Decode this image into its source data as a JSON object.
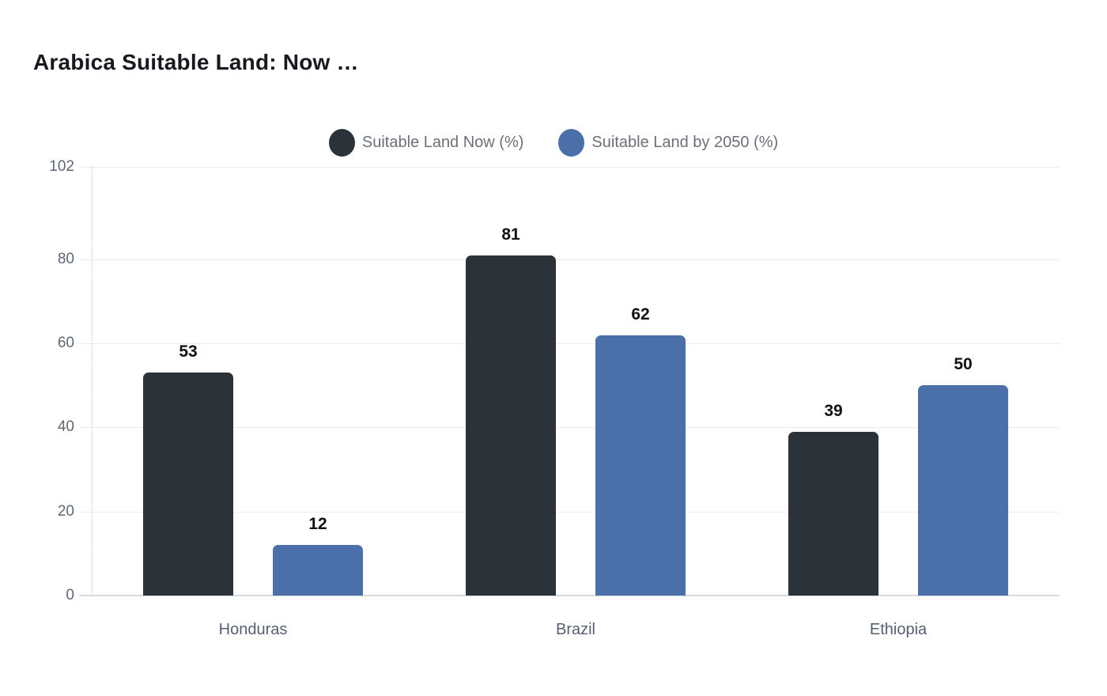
{
  "title": "Arabica Suitable Land: Now …",
  "chart_data": {
    "type": "bar",
    "title": "Arabica Suitable Land: Now …",
    "categories": [
      "Honduras",
      "Brazil",
      "Ethiopia"
    ],
    "series": [
      {
        "name": "Suitable Land Now (%)",
        "color": "#2b3338",
        "values": [
          53,
          81,
          39
        ]
      },
      {
        "name": "Suitable Land by 2050 (%)",
        "color": "#4b70a9",
        "values": [
          12,
          62,
          50
        ]
      }
    ],
    "value_labels": [
      [
        53,
        81,
        39
      ],
      [
        12,
        62,
        50
      ]
    ],
    "xlabel": "",
    "ylabel": "",
    "ylim": [
      0,
      102
    ],
    "yticks": [
      0,
      20,
      40,
      60,
      80,
      102
    ],
    "grid": true,
    "legend_position": "top-center",
    "bar_corner": "rounded-top",
    "background": "#ffffff"
  },
  "colors": {
    "series_now": "#2b3338",
    "series_2050": "#4b70a9",
    "grid_line": "#ececec",
    "axis_baseline": "#d8dade",
    "y_axis_dotted": "#c9ccce",
    "title_text": "#16191d",
    "tick_text": "#5e6874",
    "category_text": "#566070",
    "legend_text": "#6b7078",
    "value_text": "#0e1215"
  }
}
